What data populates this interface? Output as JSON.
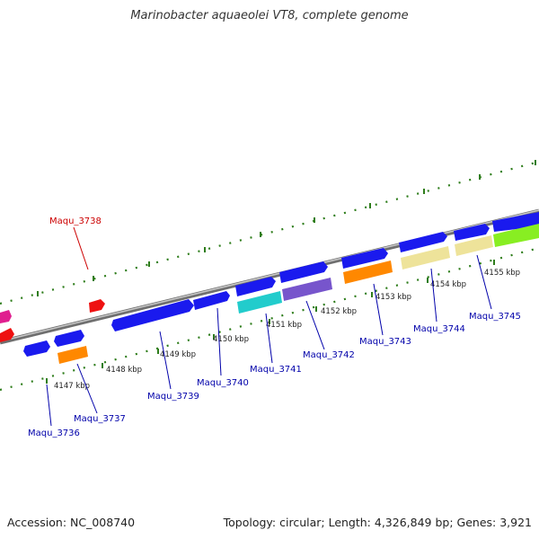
{
  "title": "Marinobacter aquaeolei VT8, complete genome",
  "footer": {
    "accession": "Accession: NC_008740",
    "summary": "Topology: circular; Length: 4,326,849 bp; Genes: 3,921"
  },
  "colors": {
    "backbone": "#8a8a8a",
    "ticks": "#2e7d1b",
    "label_blue": "#0000aa",
    "label_red": "#cc0000"
  },
  "tick_labels": [
    "4147 kbp",
    "4148 kbp",
    "4149 kbp",
    "4150 kbp",
    "4151 kbp",
    "4152 kbp",
    "4153 kbp",
    "4154 kbp",
    "4155 kbp"
  ],
  "genes": [
    {
      "id": "Maqu_3736",
      "label": "Maqu_3736",
      "label_color": "#0000aa"
    },
    {
      "id": "Maqu_3737",
      "label": "Maqu_3737",
      "label_color": "#0000aa"
    },
    {
      "id": "Maqu_3738",
      "label": "Maqu_3738",
      "label_color": "#cc0000"
    },
    {
      "id": "Maqu_3739",
      "label": "Maqu_3739",
      "label_color": "#0000aa"
    },
    {
      "id": "Maqu_3740",
      "label": "Maqu_3740",
      "label_color": "#0000aa"
    },
    {
      "id": "Maqu_3741",
      "label": "Maqu_3741",
      "label_color": "#0000aa"
    },
    {
      "id": "Maqu_3742",
      "label": "Maqu_3742",
      "label_color": "#0000aa"
    },
    {
      "id": "Maqu_3743",
      "label": "Maqu_3743",
      "label_color": "#0000aa"
    },
    {
      "id": "Maqu_3744",
      "label": "Maqu_3744",
      "label_color": "#0000aa"
    },
    {
      "id": "Maqu_3745",
      "label": "Maqu_3745",
      "label_color": "#0000aa"
    }
  ]
}
